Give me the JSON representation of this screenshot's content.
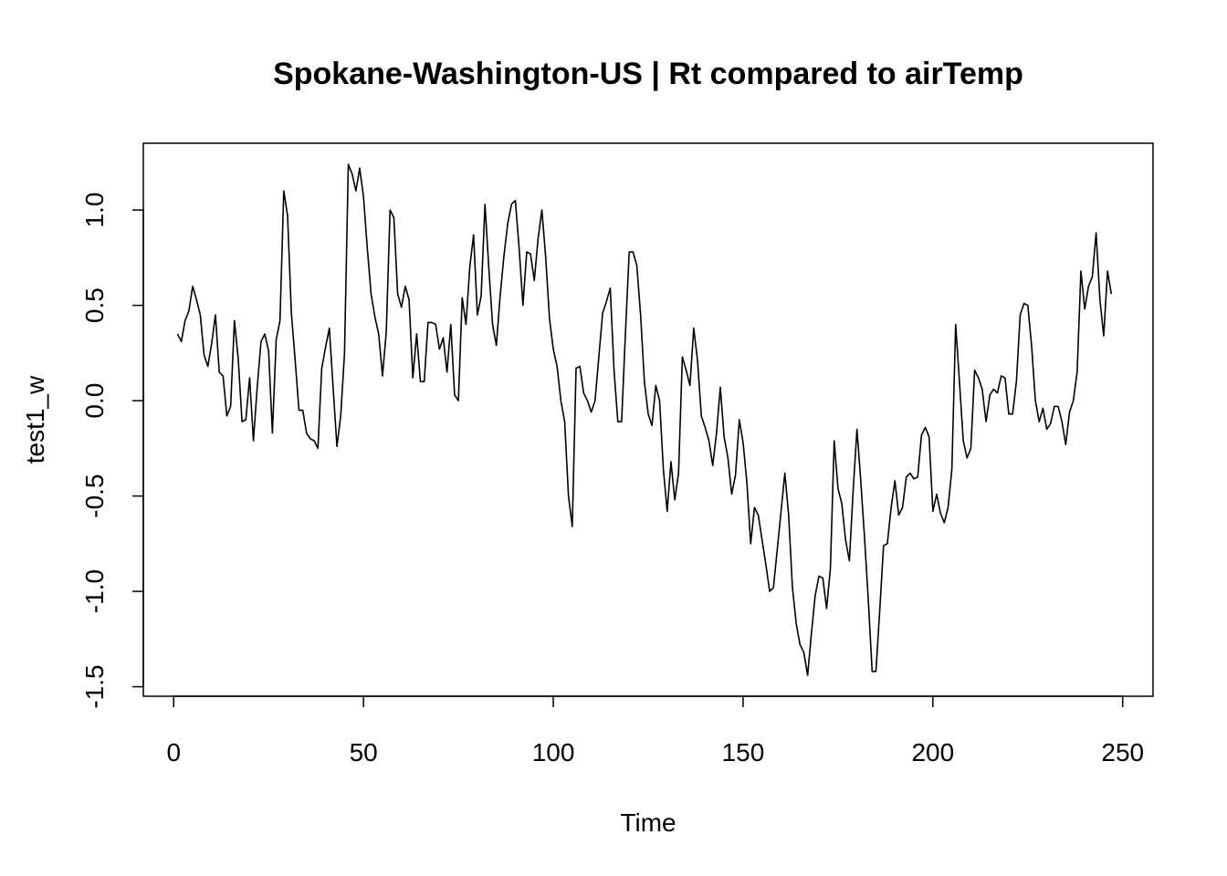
{
  "chart_data": {
    "type": "line",
    "title": "Spokane-Washington-US | Rt compared to airTemp",
    "xlabel": "Time",
    "ylabel": "test1_w",
    "xlim": [
      -8,
      258
    ],
    "ylim": [
      -1.55,
      1.35
    ],
    "xticks": [
      0,
      50,
      100,
      150,
      200,
      250
    ],
    "xtick_labels": [
      "0",
      "50",
      "100",
      "150",
      "200",
      "250"
    ],
    "yticks": [
      -1.5,
      -1.0,
      -0.5,
      0.0,
      0.5,
      1.0
    ],
    "ytick_labels": [
      "-1.5",
      "-1.0",
      "-0.5",
      "0.0",
      "0.5",
      "1.0"
    ],
    "grid": false,
    "legend": "none",
    "series": [
      {
        "color": "#000000",
        "x_start": 1,
        "x_step": 1,
        "values": [
          0.35,
          0.31,
          0.42,
          0.47,
          0.6,
          0.53,
          0.45,
          0.24,
          0.18,
          0.3,
          0.45,
          0.15,
          0.13,
          -0.08,
          -0.03,
          0.42,
          0.22,
          -0.11,
          -0.1,
          0.12,
          -0.21,
          0.07,
          0.31,
          0.35,
          0.26,
          -0.17,
          0.32,
          0.42,
          1.1,
          0.97,
          0.46,
          0.21,
          -0.05,
          -0.05,
          -0.17,
          -0.2,
          -0.21,
          -0.25,
          0.17,
          0.28,
          0.38,
          0.07,
          -0.24,
          -0.08,
          0.25,
          1.24,
          1.19,
          1.1,
          1.22,
          1.07,
          0.8,
          0.56,
          0.44,
          0.35,
          0.13,
          0.36,
          1.0,
          0.96,
          0.56,
          0.49,
          0.6,
          0.53,
          0.12,
          0.35,
          0.1,
          0.1,
          0.41,
          0.41,
          0.4,
          0.27,
          0.33,
          0.15,
          0.4,
          0.03,
          0.0,
          0.54,
          0.4,
          0.7,
          0.87,
          0.45,
          0.55,
          1.03,
          0.7,
          0.4,
          0.29,
          0.55,
          0.76,
          0.93,
          1.03,
          1.05,
          0.8,
          0.5,
          0.78,
          0.77,
          0.63,
          0.85,
          1.0,
          0.75,
          0.43,
          0.27,
          0.18,
          0.0,
          -0.11,
          -0.5,
          -0.66,
          0.17,
          0.18,
          0.04,
          0.0,
          -0.06,
          0.0,
          0.23,
          0.46,
          0.52,
          0.59,
          0.16,
          -0.11,
          -0.11,
          0.35,
          0.78,
          0.78,
          0.71,
          0.45,
          0.1,
          -0.07,
          -0.13,
          0.08,
          0.0,
          -0.36,
          -0.58,
          -0.32,
          -0.52,
          -0.38,
          0.23,
          0.16,
          0.08,
          0.38,
          0.21,
          -0.08,
          -0.14,
          -0.21,
          -0.34,
          -0.17,
          0.07,
          -0.19,
          -0.3,
          -0.49,
          -0.39,
          -0.1,
          -0.22,
          -0.43,
          -0.75,
          -0.56,
          -0.6,
          -0.73,
          -0.86,
          -1.0,
          -0.98,
          -0.78,
          -0.58,
          -0.38,
          -0.6,
          -0.98,
          -1.17,
          -1.28,
          -1.32,
          -1.44,
          -1.22,
          -1.02,
          -0.92,
          -0.93,
          -1.09,
          -0.88,
          -0.21,
          -0.46,
          -0.54,
          -0.73,
          -0.84,
          -0.47,
          -0.15,
          -0.42,
          -0.72,
          -1.05,
          -1.42,
          -1.42,
          -1.1,
          -0.76,
          -0.75,
          -0.56,
          -0.42,
          -0.6,
          -0.56,
          -0.4,
          -0.38,
          -0.41,
          -0.4,
          -0.18,
          -0.14,
          -0.19,
          -0.58,
          -0.49,
          -0.59,
          -0.64,
          -0.56,
          -0.36,
          0.4,
          0.1,
          -0.21,
          -0.3,
          -0.25,
          0.16,
          0.12,
          0.06,
          -0.11,
          0.03,
          0.06,
          0.04,
          0.13,
          0.12,
          -0.07,
          -0.07,
          0.1,
          0.45,
          0.51,
          0.5,
          0.29,
          0.0,
          -0.11,
          -0.04,
          -0.15,
          -0.12,
          -0.03,
          -0.03,
          -0.11,
          -0.23,
          -0.06,
          0.0,
          0.15,
          0.68,
          0.48,
          0.6,
          0.65,
          0.88,
          0.53,
          0.34,
          0.68,
          0.56
        ]
      }
    ]
  }
}
